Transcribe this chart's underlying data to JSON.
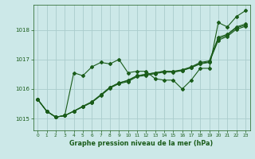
{
  "xlabel": "Graphe pression niveau de la mer (hPa)",
  "bg_color": "#cce8e8",
  "grid_color": "#aacccc",
  "line_color": "#1a5c1a",
  "ylim": [
    1014.6,
    1018.85
  ],
  "xlim": [
    -0.5,
    23.5
  ],
  "yticks": [
    1015,
    1016,
    1017,
    1018
  ],
  "xticks": [
    0,
    1,
    2,
    3,
    4,
    5,
    6,
    7,
    8,
    9,
    10,
    11,
    12,
    13,
    14,
    15,
    16,
    17,
    18,
    19,
    20,
    21,
    22,
    23
  ],
  "series": [
    [
      1015.65,
      1015.25,
      1015.05,
      1015.1,
      1016.55,
      1016.45,
      1016.75,
      1016.9,
      1016.85,
      1017.0,
      1016.55,
      1016.6,
      1016.6,
      1016.35,
      1016.3,
      1016.3,
      1016.0,
      1016.3,
      1016.7,
      1016.7,
      1018.25,
      1018.1,
      1018.45,
      1018.65
    ],
    [
      1015.65,
      1015.25,
      1015.05,
      1015.1,
      1015.25,
      1015.4,
      1015.55,
      1015.8,
      1016.05,
      1016.2,
      1016.3,
      1016.45,
      1016.5,
      1016.55,
      1016.6,
      1016.6,
      1016.65,
      1016.75,
      1016.9,
      1016.95,
      1017.75,
      1017.85,
      1018.1,
      1018.2
    ],
    [
      1015.65,
      1015.25,
      1015.05,
      1015.1,
      1015.25,
      1015.4,
      1015.55,
      1015.78,
      1016.03,
      1016.18,
      1016.25,
      1016.42,
      1016.46,
      1016.52,
      1016.57,
      1016.57,
      1016.62,
      1016.72,
      1016.85,
      1016.9,
      1017.65,
      1017.78,
      1018.02,
      1018.12
    ],
    [
      1015.65,
      1015.25,
      1015.05,
      1015.1,
      1015.25,
      1015.42,
      1015.57,
      1015.81,
      1016.06,
      1016.21,
      1016.28,
      1016.45,
      1016.49,
      1016.55,
      1016.6,
      1016.58,
      1016.63,
      1016.73,
      1016.87,
      1016.92,
      1017.7,
      1017.82,
      1018.07,
      1018.16
    ]
  ],
  "marker": "D",
  "markersize": 2.0,
  "linewidth": 0.8
}
